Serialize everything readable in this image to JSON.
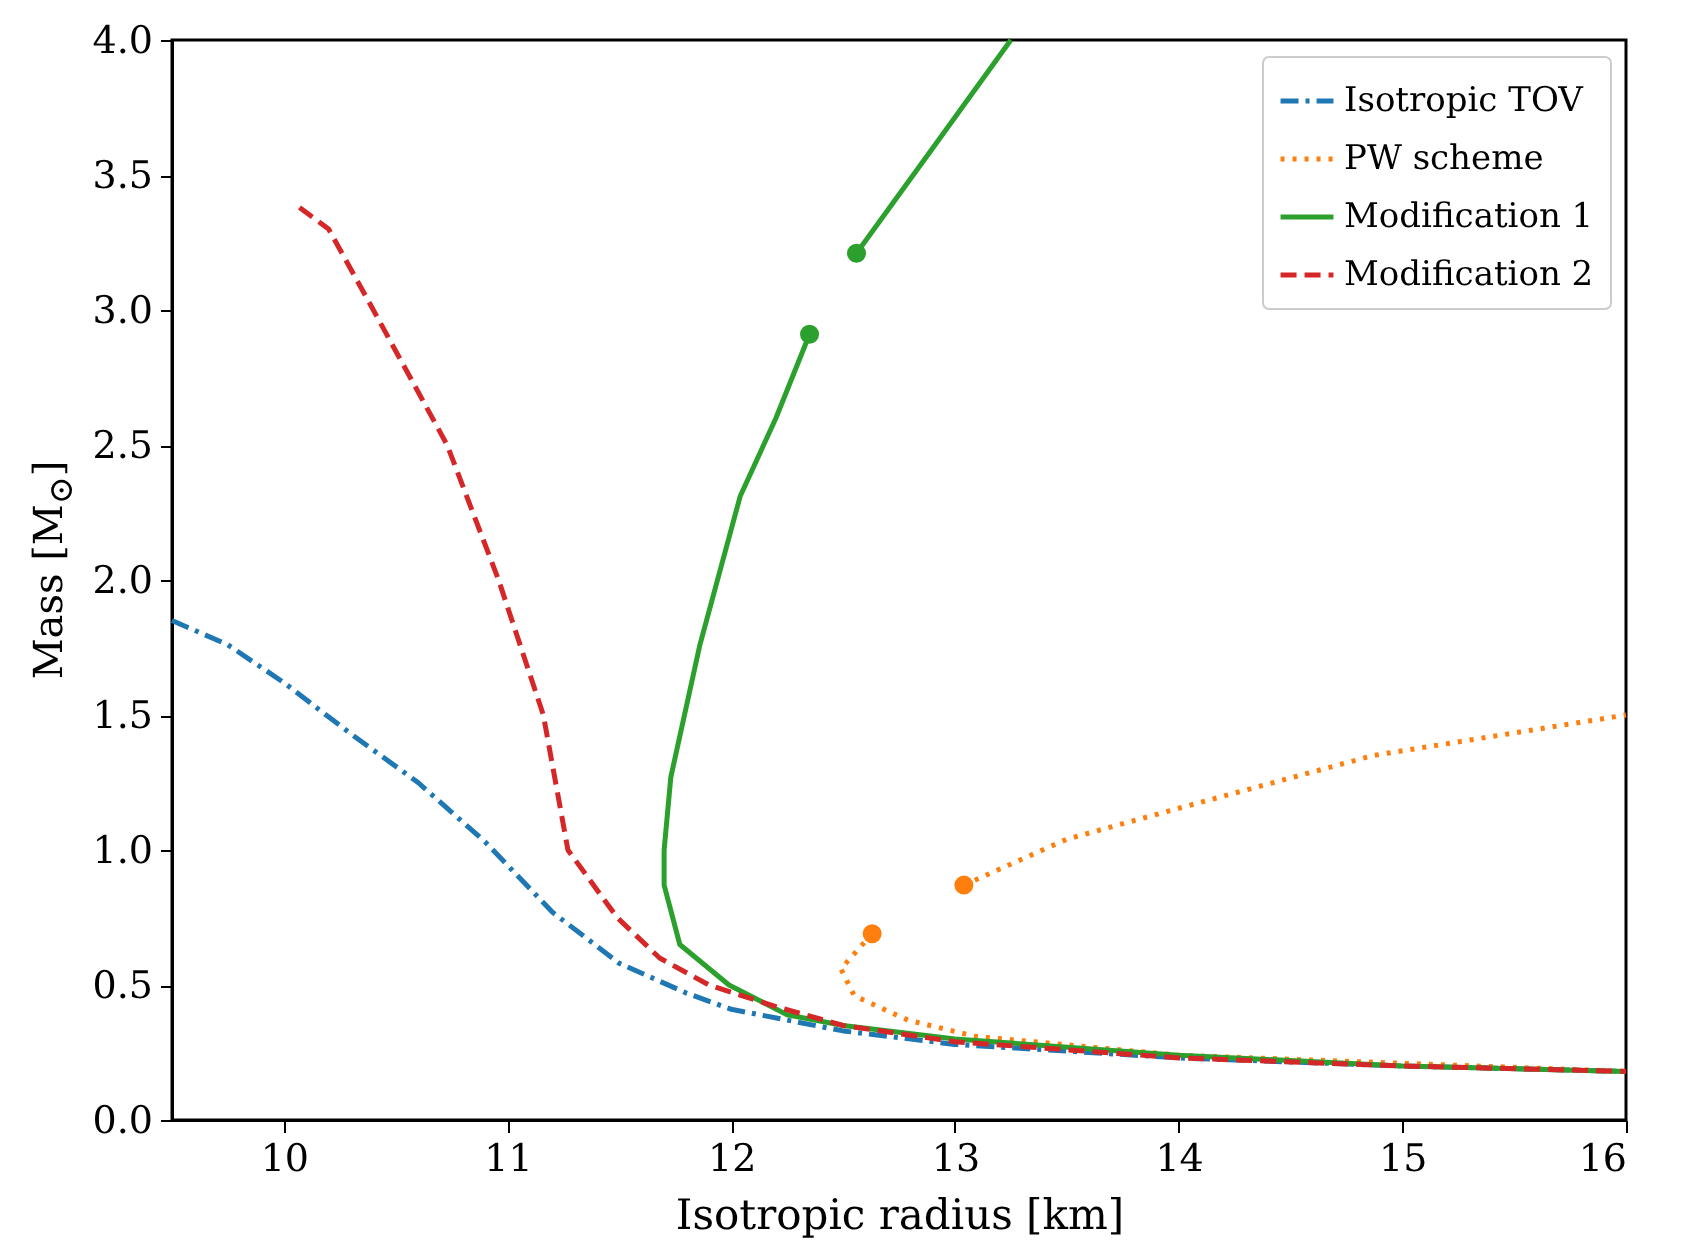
{
  "chart_data": {
    "type": "line",
    "xlabel": "Isotropic radius [km]",
    "ylabel": "Mass [M$_{⊙}$]",
    "xlim": [
      9.5,
      16
    ],
    "xticks": [
      10,
      11,
      12,
      13,
      14,
      15,
      16
    ],
    "ylim": [
      0,
      4
    ],
    "yticks": [
      {
        "value": 0,
        "label": "0.0"
      },
      {
        "value": 0.5,
        "label": "0.5"
      },
      {
        "value": 1,
        "label": "1.0"
      },
      {
        "value": 1.5,
        "label": "1.5"
      },
      {
        "value": 2,
        "label": "2.0"
      },
      {
        "value": 2.5,
        "label": "2.5"
      },
      {
        "value": 3,
        "label": "3.0"
      },
      {
        "value": 3.5,
        "label": "3.5"
      },
      {
        "value": 4,
        "label": "4.0"
      }
    ],
    "grid": false,
    "legend": "top right",
    "series": [
      {
        "name": "Isotropic TOV",
        "color": "#1f77b4",
        "line_style": "dashdot",
        "x": [
          9.5,
          9.75,
          10.0,
          10.3,
          10.6,
          10.9,
          11.2,
          11.5,
          11.8,
          12.0,
          12.5,
          13,
          14,
          15,
          16
        ],
        "values": [
          1.85,
          1.76,
          1.62,
          1.43,
          1.25,
          1.03,
          0.77,
          0.58,
          0.47,
          0.41,
          0.33,
          0.28,
          0.23,
          0.2,
          0.18
        ]
      },
      {
        "name": "PW scheme",
        "color": "#ff7f0e",
        "line_style": "dotted",
        "x": [
          12.63,
          12.49,
          12.55,
          12.79,
          13.09,
          14,
          15,
          16,
          null,
          13.04,
          13.5,
          13.98,
          14.87,
          16
        ],
        "values": [
          0.69,
          0.56,
          0.46,
          0.37,
          0.31,
          0.24,
          0.21,
          0.18,
          null,
          0.87,
          1.04,
          1.15,
          1.35,
          1.5
        ]
      },
      {
        "name": "Modification 1",
        "color": "#2ca02c",
        "line_style": "solid",
        "x": [
          16,
          15,
          14,
          13,
          12.5,
          12.25,
          11.99,
          11.77,
          11.7,
          11.7,
          11.73,
          11.86,
          12.04,
          12.2,
          12.35,
          null,
          12.56,
          12.91,
          13.25
        ],
        "values": [
          0.18,
          0.2,
          0.24,
          0.3,
          0.35,
          0.39,
          0.5,
          0.65,
          0.87,
          1.0,
          1.27,
          1.76,
          2.31,
          2.6,
          2.91,
          null,
          3.21,
          3.61,
          4.0
        ]
      },
      {
        "name": "Modification 2",
        "color": "#d62728",
        "line_style": "dashed",
        "x": [
          10.07,
          10.2,
          10.4,
          10.73,
          10.96,
          11.16,
          11.27,
          11.49,
          11.68,
          11.9,
          12.2,
          12.5,
          13,
          14,
          15,
          16
        ],
        "values": [
          3.38,
          3.3,
          3.0,
          2.5,
          2.0,
          1.5,
          1.0,
          0.75,
          0.6,
          0.5,
          0.42,
          0.35,
          0.29,
          0.23,
          0.2,
          0.18
        ]
      },
      {
        "type": "scatter",
        "marker": "circle",
        "color": "#2ca02c",
        "x": [
          12.35,
          12.56
        ],
        "values": [
          2.91,
          3.21
        ]
      },
      {
        "type": "scatter",
        "marker": "circle",
        "color": "#ff7f0e",
        "x": [
          12.63,
          13.04
        ],
        "values": [
          0.69,
          0.87
        ]
      }
    ]
  }
}
